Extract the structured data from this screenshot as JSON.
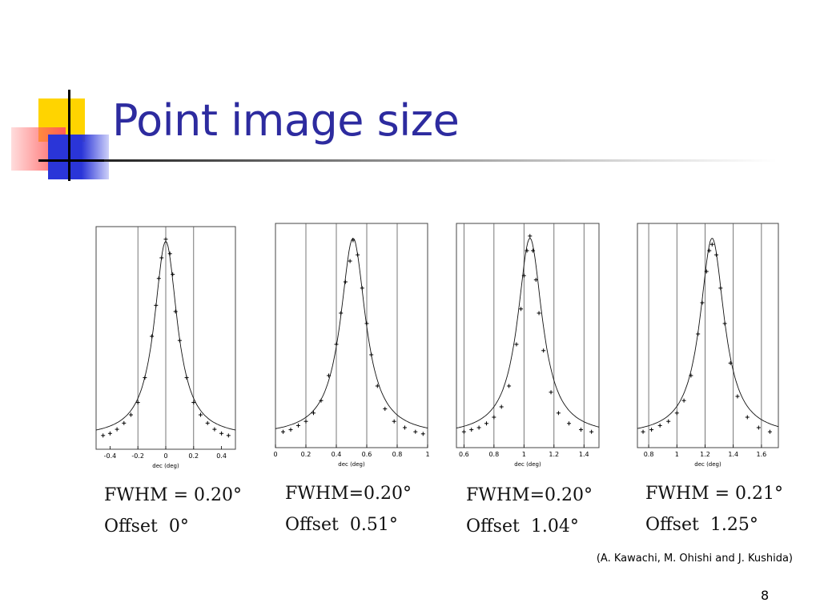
{
  "slide": {
    "title": "Point image size",
    "credit": "(A. Kawachi, M. Ohishi and J. Kushida)",
    "page_number": "8",
    "title_color": "#2d2b9f",
    "accent_colors": [
      "#ffd400",
      "#ff5a5a",
      "#2a35d8"
    ]
  },
  "captions": [
    {
      "fwhm": "FWHM = 0.20°",
      "offset_label": "Offset",
      "offset_value": "0°"
    },
    {
      "fwhm": "FWHM=0.20°",
      "offset_label": "Offset",
      "offset_value": "0.51°"
    },
    {
      "fwhm": "FWHM=0.20°",
      "offset_label": "Offset",
      "offset_value": "1.04°"
    },
    {
      "fwhm": "FWHM = 0.21°",
      "offset_label": "Offset",
      "offset_value": "1.25°"
    }
  ],
  "chart_data": [
    {
      "type": "scatter",
      "xlabel": "dec (deg)",
      "xlim": [
        -0.5,
        0.5
      ],
      "ylim": [
        0,
        1
      ],
      "xticks": [
        -0.4,
        -0.2,
        0,
        0.2,
        0.4
      ],
      "xtick_labels": [
        "-0.4",
        "-0.2",
        "0",
        "0.2",
        "0.4"
      ],
      "vlines": [
        -0.2,
        0,
        0.2
      ],
      "peak_center": 0.0,
      "fwhm": 0.2,
      "series": [
        {
          "kind": "points",
          "values": [
            [
              -0.45,
              0.02
            ],
            [
              -0.4,
              0.03
            ],
            [
              -0.35,
              0.05
            ],
            [
              -0.3,
              0.08
            ],
            [
              -0.25,
              0.12
            ],
            [
              -0.2,
              0.18
            ],
            [
              -0.15,
              0.3
            ],
            [
              -0.1,
              0.5
            ],
            [
              -0.07,
              0.65
            ],
            [
              -0.05,
              0.78
            ],
            [
              -0.03,
              0.88
            ],
            [
              0.0,
              0.97
            ],
            [
              0.03,
              0.9
            ],
            [
              0.05,
              0.8
            ],
            [
              0.07,
              0.62
            ],
            [
              0.1,
              0.48
            ],
            [
              0.15,
              0.3
            ],
            [
              0.2,
              0.18
            ],
            [
              0.25,
              0.12
            ],
            [
              0.3,
              0.08
            ],
            [
              0.35,
              0.05
            ],
            [
              0.4,
              0.03
            ],
            [
              0.45,
              0.02
            ]
          ]
        },
        {
          "kind": "fit",
          "model": "lorentzian"
        }
      ]
    },
    {
      "type": "scatter",
      "xlabel": "dec (deg)",
      "xlim": [
        0,
        1
      ],
      "ylim": [
        0,
        1
      ],
      "xticks": [
        0,
        0.2,
        0.4,
        0.6,
        0.8,
        1
      ],
      "xtick_labels": [
        "0",
        "0.2",
        "0.4",
        "0.6",
        "0.8",
        "1"
      ],
      "vlines": [
        0.2,
        0.4,
        0.6,
        0.8
      ],
      "peak_center": 0.51,
      "fwhm": 0.2,
      "series": [
        {
          "kind": "points",
          "values": [
            [
              0.05,
              0.03
            ],
            [
              0.1,
              0.04
            ],
            [
              0.15,
              0.06
            ],
            [
              0.2,
              0.08
            ],
            [
              0.25,
              0.12
            ],
            [
              0.3,
              0.18
            ],
            [
              0.35,
              0.3
            ],
            [
              0.4,
              0.45
            ],
            [
              0.43,
              0.6
            ],
            [
              0.46,
              0.75
            ],
            [
              0.49,
              0.85
            ],
            [
              0.51,
              0.95
            ],
            [
              0.54,
              0.88
            ],
            [
              0.57,
              0.72
            ],
            [
              0.6,
              0.55
            ],
            [
              0.63,
              0.4
            ],
            [
              0.67,
              0.25
            ],
            [
              0.72,
              0.14
            ],
            [
              0.78,
              0.08
            ],
            [
              0.85,
              0.05
            ],
            [
              0.92,
              0.03
            ],
            [
              0.97,
              0.02
            ]
          ]
        },
        {
          "kind": "fit",
          "model": "lorentzian"
        }
      ]
    },
    {
      "type": "scatter",
      "xlabel": "dec (deg)",
      "xlim": [
        0.55,
        1.5
      ],
      "ylim": [
        0,
        1
      ],
      "xticks": [
        0.6,
        0.8,
        1,
        1.2,
        1.4
      ],
      "xtick_labels": [
        "0.6",
        "0.8",
        "1",
        "1.2",
        "1.4"
      ],
      "vlines": [
        0.6,
        0.8,
        1.0,
        1.2,
        1.4
      ],
      "peak_center": 1.04,
      "fwhm": 0.2,
      "series": [
        {
          "kind": "points",
          "values": [
            [
              0.6,
              0.03
            ],
            [
              0.65,
              0.04
            ],
            [
              0.7,
              0.05
            ],
            [
              0.75,
              0.07
            ],
            [
              0.8,
              0.1
            ],
            [
              0.85,
              0.15
            ],
            [
              0.9,
              0.25
            ],
            [
              0.95,
              0.45
            ],
            [
              0.98,
              0.62
            ],
            [
              1.0,
              0.78
            ],
            [
              1.02,
              0.9
            ],
            [
              1.04,
              0.97
            ],
            [
              1.06,
              0.9
            ],
            [
              1.08,
              0.76
            ],
            [
              1.1,
              0.6
            ],
            [
              1.13,
              0.42
            ],
            [
              1.18,
              0.22
            ],
            [
              1.23,
              0.12
            ],
            [
              1.3,
              0.07
            ],
            [
              1.38,
              0.04
            ],
            [
              1.45,
              0.03
            ]
          ]
        },
        {
          "kind": "fit",
          "model": "lorentzian"
        }
      ]
    },
    {
      "type": "scatter",
      "xlabel": "dec (deg)",
      "xlim": [
        0.72,
        1.72
      ],
      "ylim": [
        0,
        1
      ],
      "xticks": [
        0.8,
        1,
        1.2,
        1.4,
        1.6
      ],
      "xtick_labels": [
        "0.8",
        "1",
        "1.2",
        "1.4",
        "1.6"
      ],
      "vlines": [
        0.8,
        1.0,
        1.2,
        1.4,
        1.6
      ],
      "peak_center": 1.25,
      "fwhm": 0.21,
      "series": [
        {
          "kind": "points",
          "values": [
            [
              0.76,
              0.03
            ],
            [
              0.82,
              0.04
            ],
            [
              0.88,
              0.06
            ],
            [
              0.94,
              0.08
            ],
            [
              1.0,
              0.12
            ],
            [
              1.05,
              0.18
            ],
            [
              1.1,
              0.3
            ],
            [
              1.15,
              0.5
            ],
            [
              1.18,
              0.65
            ],
            [
              1.21,
              0.8
            ],
            [
              1.23,
              0.9
            ],
            [
              1.25,
              0.93
            ],
            [
              1.28,
              0.88
            ],
            [
              1.31,
              0.72
            ],
            [
              1.34,
              0.55
            ],
            [
              1.38,
              0.36
            ],
            [
              1.43,
              0.2
            ],
            [
              1.5,
              0.1
            ],
            [
              1.58,
              0.05
            ],
            [
              1.66,
              0.03
            ]
          ]
        },
        {
          "kind": "fit",
          "model": "lorentzian"
        }
      ]
    }
  ]
}
